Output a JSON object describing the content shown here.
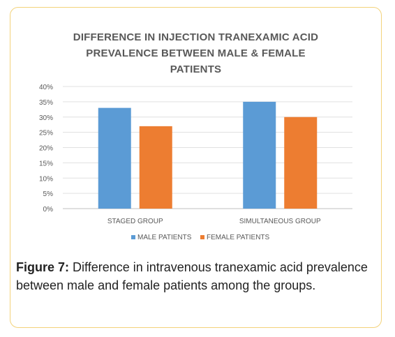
{
  "chart_data": {
    "type": "bar",
    "title_lines": [
      "DIFFERENCE IN INJECTION TRANEXAMIC ACID",
      "PREVALENCE BETWEEN MALE & FEMALE",
      "PATIENTS"
    ],
    "categories": [
      "STAGED GROUP",
      "SIMULTANEOUS GROUP"
    ],
    "series": [
      {
        "name": "MALE PATIENTS",
        "values": [
          33,
          35
        ],
        "color": "#5b9bd5"
      },
      {
        "name": "FEMALE PATIENTS",
        "values": [
          27,
          30
        ],
        "color": "#ed7d31"
      }
    ],
    "ylim": [
      0,
      40
    ],
    "yticks": [
      0,
      5,
      10,
      15,
      20,
      25,
      30,
      35,
      40
    ],
    "ytick_labels": [
      "0%",
      "5%",
      "10%",
      "15%",
      "20%",
      "25%",
      "30%",
      "35%",
      "40%"
    ],
    "grid": true,
    "legend_position": "bottom"
  },
  "caption": {
    "label": "Figure 7:",
    "text": " Difference in intravenous tranexamic acid prevalence between male and female patients among the groups."
  }
}
